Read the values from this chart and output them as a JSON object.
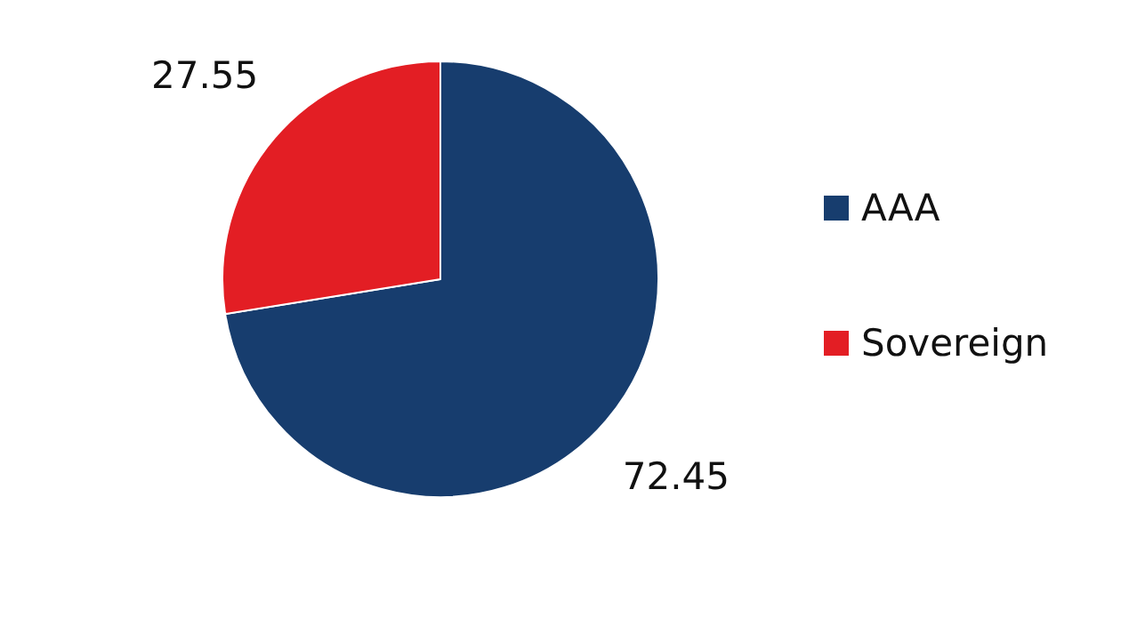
{
  "chart_data": {
    "type": "pie",
    "categories": [
      "AAA",
      "Sovereign"
    ],
    "values": [
      72.45,
      27.55
    ],
    "colors": [
      "#173d6e",
      "#e31e24"
    ],
    "data_labels": true,
    "legend": "right"
  }
}
